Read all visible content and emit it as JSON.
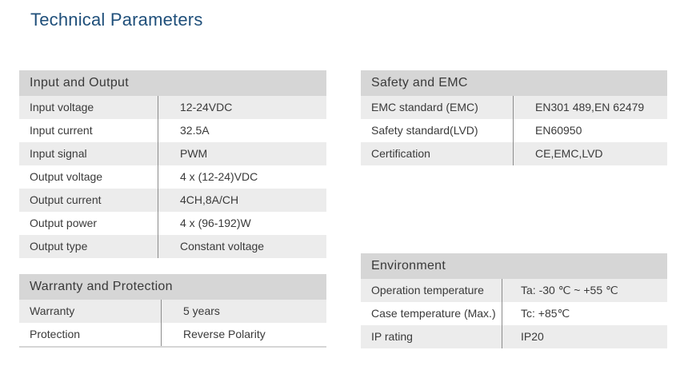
{
  "title": "Technical Parameters",
  "input_output": {
    "heading": "Input and Output",
    "rows": [
      {
        "label": "Input voltage",
        "value": "12-24VDC"
      },
      {
        "label": "Input current",
        "value": "32.5A"
      },
      {
        "label": "Input signal",
        "value": "PWM"
      },
      {
        "label": "Output voltage",
        "value": "4 x (12-24)VDC"
      },
      {
        "label": "Output current",
        "value": "4CH,8A/CH"
      },
      {
        "label": "Output power",
        "value": "4 x (96-192)W"
      },
      {
        "label": "Output type",
        "value": "Constant voltage"
      }
    ]
  },
  "warranty_protection": {
    "heading": "Warranty and Protection",
    "rows": [
      {
        "label": "Warranty",
        "value": "5 years"
      },
      {
        "label": "Protection",
        "value": "Reverse Polarity"
      }
    ]
  },
  "safety_emc": {
    "heading": "Safety and EMC",
    "rows": [
      {
        "label": "EMC standard (EMC)",
        "value": "EN301 489,EN 62479"
      },
      {
        "label": "Safety standard(LVD)",
        "value": "EN60950"
      },
      {
        "label": "Certification",
        "value": "CE,EMC,LVD"
      }
    ]
  },
  "environment": {
    "heading": "Environment",
    "rows": [
      {
        "label": "Operation temperature",
        "value": "Ta: -30 ℃ ~ +55 ℃"
      },
      {
        "label": "Case temperature (Max.)",
        "value": "Tc: +85℃"
      },
      {
        "label": "IP rating",
        "value": "IP20"
      }
    ]
  }
}
